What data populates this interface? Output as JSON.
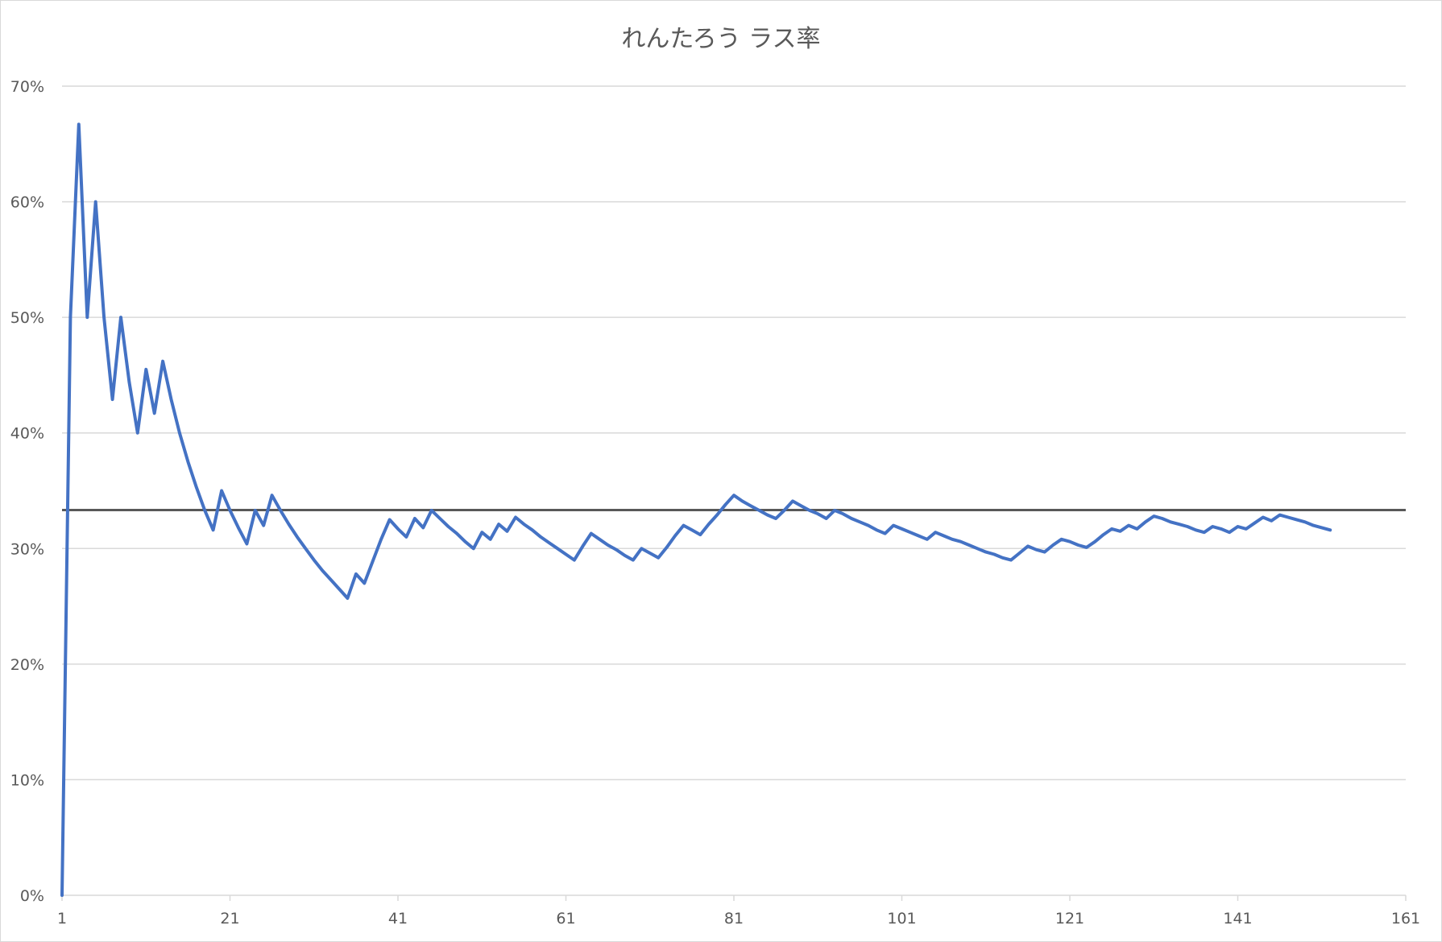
{
  "chart_data": {
    "type": "line",
    "title": "れんたろう ラス率",
    "xlabel": "",
    "ylabel": "",
    "xlim": [
      1,
      161
    ],
    "ylim": [
      0,
      0.7
    ],
    "x_ticks": [
      1,
      21,
      41,
      61,
      81,
      101,
      121,
      141,
      161
    ],
    "x_tick_labels": [
      "1",
      "21",
      "41",
      "61",
      "81",
      "101",
      "121",
      "141",
      "161"
    ],
    "y_ticks": [
      0,
      0.1,
      0.2,
      0.3,
      0.4,
      0.5,
      0.6,
      0.7
    ],
    "y_tick_labels": [
      "0%",
      "10%",
      "20%",
      "30%",
      "40%",
      "50%",
      "60%",
      "70%"
    ],
    "grid": true,
    "legend": "none",
    "reference_line": {
      "y": 0.3333,
      "color": "#595959"
    },
    "series": [
      {
        "color": "#4472c4",
        "x": [
          1,
          2,
          3,
          4,
          5,
          6,
          7,
          8,
          9,
          10,
          11,
          12,
          13,
          14,
          15,
          16,
          17,
          18,
          19,
          20,
          21,
          22,
          23,
          24,
          25,
          26,
          27,
          28,
          29,
          30,
          31,
          32,
          33,
          34,
          35,
          36,
          37,
          38,
          39,
          40,
          41,
          42,
          43,
          44,
          45,
          46,
          47,
          48,
          49,
          50,
          51,
          52,
          53,
          54,
          55,
          56,
          57,
          58,
          59,
          60,
          61,
          62,
          63,
          64,
          65,
          66,
          67,
          68,
          69,
          70,
          71,
          72,
          73,
          74,
          75,
          76,
          77,
          78,
          79,
          80,
          81,
          82,
          83,
          84,
          85,
          86,
          87,
          88,
          89,
          90,
          91,
          92,
          93,
          94,
          95,
          96,
          97,
          98,
          99,
          100,
          101,
          102,
          103,
          104,
          105,
          106,
          107,
          108,
          109,
          110,
          111,
          112,
          113,
          114,
          115,
          116,
          117,
          118,
          119,
          120,
          121,
          122,
          123,
          124,
          125,
          126,
          127,
          128,
          129,
          130,
          131,
          132,
          133,
          134,
          135,
          136,
          137,
          138,
          139,
          140,
          141,
          142,
          143,
          144,
          145,
          146,
          147,
          148,
          149,
          150,
          151,
          152
        ],
        "y": [
          0,
          0.5,
          0.667,
          0.5,
          0.6,
          0.5,
          0.429,
          0.5,
          0.444,
          0.4,
          0.455,
          0.417,
          0.462,
          0.429,
          0.4,
          0.375,
          0.353,
          0.333,
          0.316,
          0.35,
          0.333,
          0.318,
          0.304,
          0.333,
          0.32,
          0.346,
          0.333,
          0.321,
          0.31,
          0.3,
          0.29,
          0.281,
          0.273,
          0.265,
          0.257,
          0.278,
          0.27,
          0.289,
          0.308,
          0.325,
          0.317,
          0.31,
          0.326,
          0.318,
          0.333,
          0.326,
          0.319,
          0.313,
          0.306,
          0.3,
          0.314,
          0.308,
          0.321,
          0.315,
          0.327,
          0.321,
          0.316,
          0.31,
          0.305,
          0.3,
          0.295,
          0.29,
          0.302,
          0.313,
          0.308,
          0.303,
          0.299,
          0.294,
          0.29,
          0.3,
          0.296,
          0.292,
          0.301,
          0.311,
          0.32,
          0.316,
          0.312,
          0.321,
          0.329,
          0.338,
          0.346,
          0.341,
          0.337,
          0.333,
          0.329,
          0.326,
          0.333,
          0.341,
          0.337,
          0.333,
          0.33,
          0.326,
          0.333,
          0.33,
          0.326,
          0.323,
          0.32,
          0.316,
          0.313,
          0.32,
          0.317,
          0.314,
          0.311,
          0.308,
          0.314,
          0.311,
          0.308,
          0.306,
          0.303,
          0.3,
          0.297,
          0.295,
          0.292,
          0.29,
          0.296,
          0.302,
          0.299,
          0.297,
          0.303,
          0.308,
          0.306,
          0.303,
          0.301,
          0.306,
          0.312,
          0.317,
          0.315,
          0.32,
          0.317,
          0.323,
          0.328,
          0.326,
          0.323,
          0.321,
          0.319,
          0.316,
          0.314,
          0.319,
          0.317,
          0.314,
          0.319,
          0.317,
          0.322,
          0.327,
          0.324,
          0.329,
          0.327,
          0.325,
          0.323,
          0.32,
          0.318,
          0.316
        ]
      }
    ]
  }
}
